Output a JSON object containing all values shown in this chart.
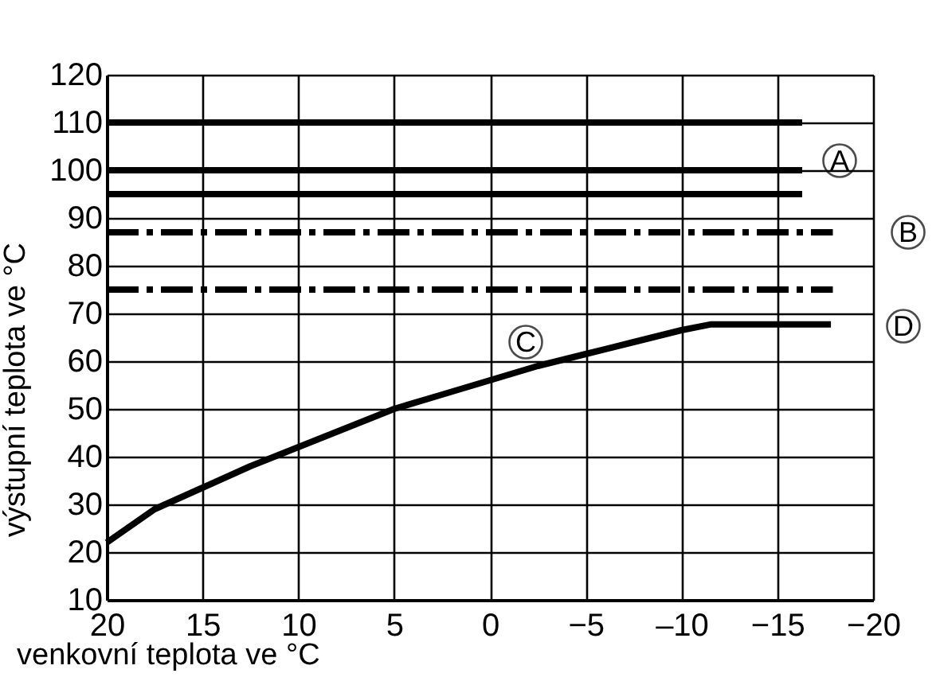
{
  "chart_data": {
    "type": "line",
    "xlabel": "venkovní teplota ve °C",
    "ylabel": "výstupní teplota ve °C",
    "xlim": [
      20,
      -20
    ],
    "ylim": [
      10,
      120
    ],
    "xticks": [
      20,
      15,
      10,
      5,
      0,
      -5,
      {
        "value": -10,
        "label": "–10"
      },
      -15,
      -20
    ],
    "yticks": [
      10,
      20,
      30,
      40,
      50,
      60,
      70,
      80,
      90,
      100,
      110,
      120
    ],
    "grid": true,
    "marker": "none",
    "series": [
      {
        "color": "#000000",
        "line_style": "solid",
        "x": [
          20,
          -16.3
        ],
        "values": [
          110,
          110
        ]
      },
      {
        "color": "#000000",
        "line_style": "solid",
        "x": [
          20,
          -16.3
        ],
        "values": [
          100,
          100
        ]
      },
      {
        "color": "#000000",
        "line_style": "solid",
        "x": [
          20,
          -16.3
        ],
        "values": [
          95,
          95
        ]
      },
      {
        "color": "#000000",
        "line_style": "dashed",
        "x": [
          20,
          -17.9
        ],
        "values": [
          87,
          87
        ]
      },
      {
        "color": "#000000",
        "line_style": "dashed",
        "x": [
          20,
          -17.9
        ],
        "values": [
          75,
          75
        ]
      },
      {
        "color": "#000000",
        "line_style": "solid",
        "x": [
          20,
          17.5,
          15,
          12.5,
          10,
          7.5,
          5,
          2.5,
          0,
          -2.5,
          -5,
          -7.5,
          -10,
          -11.5,
          -17.8
        ],
        "values": [
          22,
          29,
          33.5,
          38,
          42,
          46,
          50,
          53,
          56,
          59,
          61.5,
          64,
          66.5,
          67.7,
          67.7
        ]
      }
    ],
    "annotations": [
      "A",
      "B",
      "C",
      "D"
    ]
  }
}
